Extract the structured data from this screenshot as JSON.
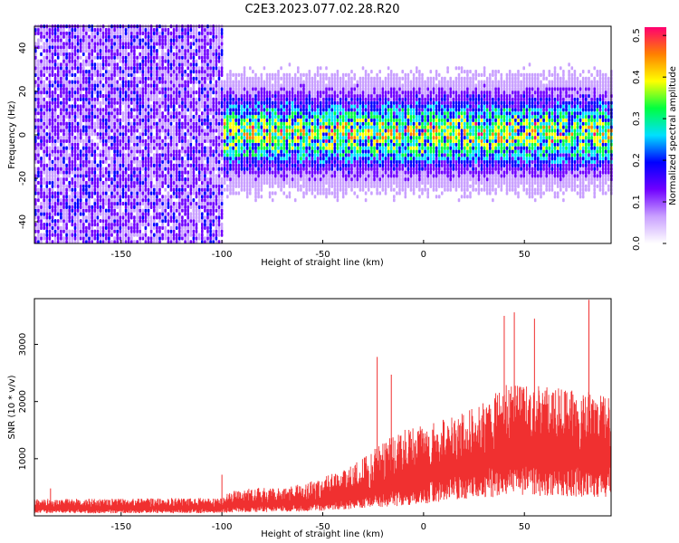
{
  "title": "C2E3.2023.077.02.28.R20",
  "chart_data": [
    {
      "type": "heatmap",
      "title": "C2E3.2023.077.02.28.R20",
      "xlabel": "Height of straight line (km)",
      "ylabel": "Frequency (Hz)",
      "xlim": [
        -193,
        93
      ],
      "ylim": [
        -50,
        50
      ],
      "x_ticks": [
        -150,
        -100,
        -50,
        0,
        50
      ],
      "y_ticks": [
        -40,
        -20,
        0,
        20,
        40
      ],
      "colorbar": {
        "label": "Normalized spectral amplitude",
        "range": [
          0.0,
          0.52
        ],
        "ticks": [
          0.0,
          0.1,
          0.2,
          0.3,
          0.4,
          0.5
        ],
        "colors": [
          "#ffffff",
          "#c9a0ff",
          "#7000ff",
          "#0000ff",
          "#00e0ff",
          "#00ff40",
          "#ffff00",
          "#ff8000",
          "#ff0070"
        ]
      },
      "features": {
        "broadband_noise_region_x": [
          -193,
          -100
        ],
        "signal_band_center_freq": 0,
        "signal_onset_x": -100,
        "peak_band_freq_halfwidth": 5
      }
    },
    {
      "type": "line",
      "xlabel": "Height of straight line (km)",
      "ylabel": "SNR (10 * v/v)",
      "xlim": [
        -193,
        93
      ],
      "ylim": [
        0,
        3800
      ],
      "x_ticks": [
        -150,
        -100,
        -50,
        0,
        50
      ],
      "y_ticks": [
        1000,
        2000,
        3000
      ],
      "color": "#f03030",
      "envelope": {
        "x": [
          -193,
          -150,
          -100,
          -95,
          -60,
          -40,
          -30,
          -20,
          -10,
          0,
          10,
          20,
          30,
          40,
          50,
          60,
          70,
          80,
          93
        ],
        "baseline": [
          150,
          150,
          160,
          200,
          250,
          350,
          450,
          500,
          600,
          700,
          850,
          950,
          1050,
          1150,
          1200,
          1150,
          1150,
          1100,
          1100
        ],
        "typical_max": [
          300,
          300,
          320,
          450,
          550,
          800,
          1000,
          1300,
          1500,
          1600,
          1700,
          1800,
          2000,
          2300,
          2300,
          2300,
          2200,
          2200,
          2100
        ]
      },
      "spikes": [
        {
          "x": -185,
          "y": 480
        },
        {
          "x": -100,
          "y": 720
        },
        {
          "x": -23,
          "y": 2780
        },
        {
          "x": -16,
          "y": 2470
        },
        {
          "x": 40,
          "y": 3500
        },
        {
          "x": 45,
          "y": 3560
        },
        {
          "x": 55,
          "y": 3450
        },
        {
          "x": 82,
          "y": 3780
        }
      ]
    }
  ]
}
